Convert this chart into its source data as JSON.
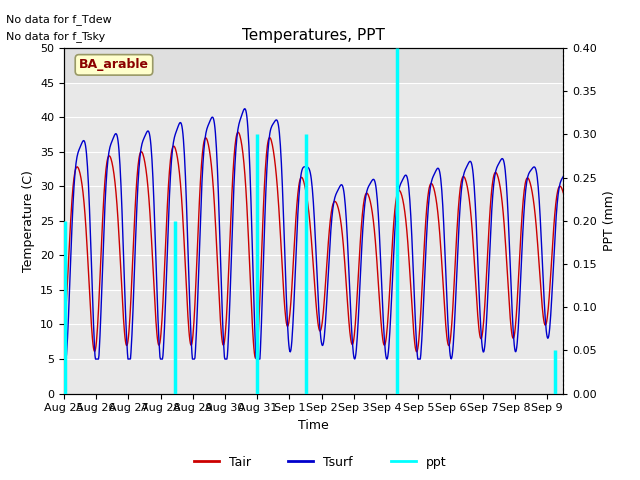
{
  "title": "Temperatures, PPT",
  "xlabel": "Time",
  "ylabel_left": "Temperature (C)",
  "ylabel_right": "PPT (mm)",
  "note1": "No data for f_Tdew",
  "note2": "No data for f_Tsky",
  "site_label": "BA_arable",
  "ylim_left": [
    0,
    50
  ],
  "ylim_right": [
    0.0,
    0.4
  ],
  "yticks_left": [
    0,
    5,
    10,
    15,
    20,
    25,
    30,
    35,
    40,
    45,
    50
  ],
  "yticks_right": [
    0.0,
    0.05,
    0.1,
    0.15,
    0.2,
    0.25,
    0.3,
    0.35,
    0.4
  ],
  "bg_color": "#e8e8e8",
  "tair_color": "#cc0000",
  "tsurf_color": "#0000cc",
  "ppt_color": "#00ffff",
  "total_days": 15.5,
  "tick_positions": [
    0,
    1,
    2,
    3,
    4,
    5,
    6,
    7,
    8,
    9,
    10,
    11,
    12,
    13,
    14,
    15
  ],
  "tick_labels": [
    "Aug 25",
    "Aug 26",
    "Aug 27",
    "Aug 28",
    "Aug 29",
    "Aug 30",
    "Aug 31",
    "Sep 1",
    "Sep 2",
    "Sep 3",
    "Sep 4",
    "Sep 5",
    "Sep 6",
    "Sep 7",
    "Sep 8",
    "Sep 9"
  ],
  "ppt_spike_days": [
    0.02,
    3.45,
    6.0,
    7.52,
    10.35,
    15.25
  ],
  "ppt_spike_vals": [
    0.2,
    0.2,
    0.3,
    0.3,
    0.4,
    0.05
  ],
  "figsize": [
    6.4,
    4.8
  ],
  "dpi": 100
}
